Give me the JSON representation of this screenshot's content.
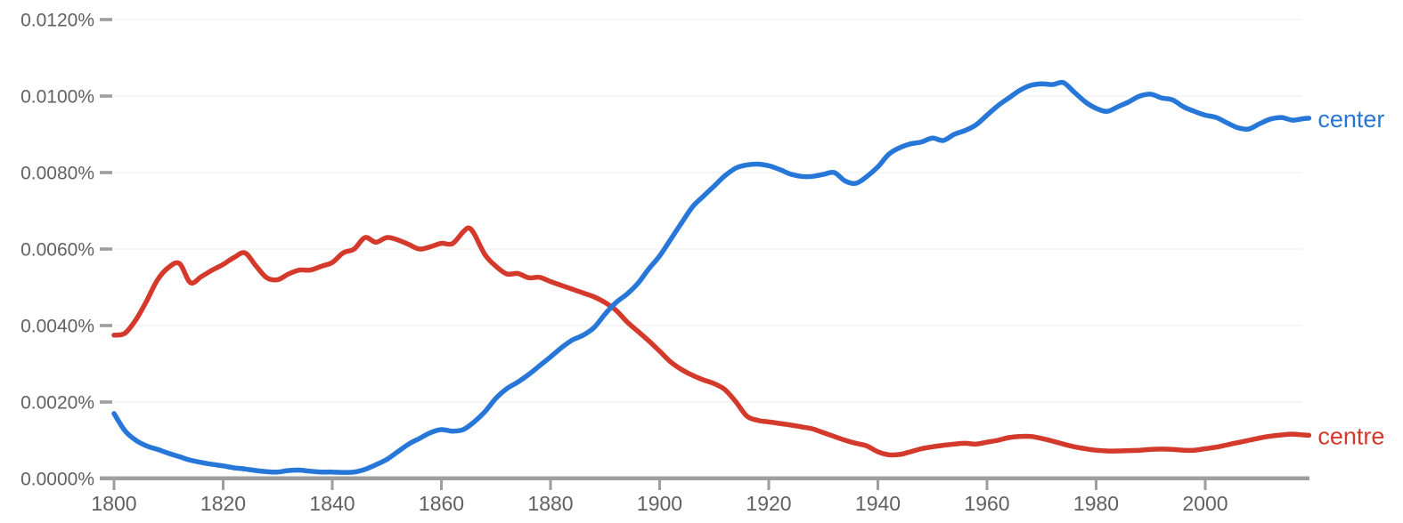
{
  "chart_data": {
    "type": "line",
    "title": "",
    "grid": true,
    "legend_position": "end-of-line",
    "x_axis": {
      "range": [
        1800,
        2019
      ],
      "ticks": [
        1800,
        1820,
        1840,
        1860,
        1880,
        1900,
        1920,
        1940,
        1960,
        1980,
        2000
      ],
      "tick_labels": [
        "1800",
        "1820",
        "1840",
        "1860",
        "1880",
        "1900",
        "1920",
        "1940",
        "1960",
        "1980",
        "2000"
      ]
    },
    "y_axis": {
      "range": [
        0,
        0.012
      ],
      "unit": "%",
      "tick_values": [
        0,
        0.002,
        0.004,
        0.006,
        0.008,
        0.01,
        0.012
      ],
      "tick_labels": [
        "0.0000%",
        "0.0020%",
        "0.0040%",
        "0.0060%",
        "0.0080%",
        "0.0100%",
        "0.0120%"
      ]
    },
    "series": [
      {
        "name": "centre",
        "color": "#d33a2c",
        "points": [
          [
            1800,
            0.00375
          ],
          [
            1802,
            0.0038
          ],
          [
            1804,
            0.00415
          ],
          [
            1806,
            0.00465
          ],
          [
            1808,
            0.0052
          ],
          [
            1810,
            0.00552
          ],
          [
            1812,
            0.00562
          ],
          [
            1814,
            0.00512
          ],
          [
            1816,
            0.00528
          ],
          [
            1818,
            0.00545
          ],
          [
            1820,
            0.0056
          ],
          [
            1822,
            0.00578
          ],
          [
            1824,
            0.0059
          ],
          [
            1826,
            0.00556
          ],
          [
            1828,
            0.00525
          ],
          [
            1830,
            0.0052
          ],
          [
            1832,
            0.00535
          ],
          [
            1834,
            0.00545
          ],
          [
            1836,
            0.00545
          ],
          [
            1838,
            0.00555
          ],
          [
            1840,
            0.00565
          ],
          [
            1842,
            0.0059
          ],
          [
            1844,
            0.006
          ],
          [
            1846,
            0.0063
          ],
          [
            1848,
            0.00618
          ],
          [
            1850,
            0.0063
          ],
          [
            1852,
            0.00624
          ],
          [
            1854,
            0.00612
          ],
          [
            1856,
            0.006
          ],
          [
            1858,
            0.00606
          ],
          [
            1860,
            0.00615
          ],
          [
            1862,
            0.00614
          ],
          [
            1864,
            0.00645
          ],
          [
            1865,
            0.00655
          ],
          [
            1866,
            0.0064
          ],
          [
            1868,
            0.00585
          ],
          [
            1870,
            0.00555
          ],
          [
            1872,
            0.00535
          ],
          [
            1874,
            0.00536
          ],
          [
            1876,
            0.00525
          ],
          [
            1878,
            0.00526
          ],
          [
            1880,
            0.00515
          ],
          [
            1882,
            0.00505
          ],
          [
            1884,
            0.00495
          ],
          [
            1886,
            0.00485
          ],
          [
            1888,
            0.00475
          ],
          [
            1890,
            0.0046
          ],
          [
            1892,
            0.0044
          ],
          [
            1894,
            0.0041
          ],
          [
            1896,
            0.00385
          ],
          [
            1898,
            0.0036
          ],
          [
            1900,
            0.00333
          ],
          [
            1902,
            0.00305
          ],
          [
            1904,
            0.00285
          ],
          [
            1906,
            0.0027
          ],
          [
            1908,
            0.00258
          ],
          [
            1910,
            0.00248
          ],
          [
            1912,
            0.00232
          ],
          [
            1914,
            0.002
          ],
          [
            1916,
            0.00163
          ],
          [
            1918,
            0.00152
          ],
          [
            1920,
            0.00148
          ],
          [
            1922,
            0.00144
          ],
          [
            1924,
            0.0014
          ],
          [
            1926,
            0.00135
          ],
          [
            1928,
            0.0013
          ],
          [
            1930,
            0.0012
          ],
          [
            1932,
            0.0011
          ],
          [
            1934,
            0.001
          ],
          [
            1936,
            0.00092
          ],
          [
            1938,
            0.00085
          ],
          [
            1940,
            0.0007
          ],
          [
            1942,
            0.00062
          ],
          [
            1944,
            0.00063
          ],
          [
            1946,
            0.0007
          ],
          [
            1948,
            0.00078
          ],
          [
            1950,
            0.00083
          ],
          [
            1952,
            0.00087
          ],
          [
            1954,
            0.0009
          ],
          [
            1956,
            0.00092
          ],
          [
            1958,
            0.0009
          ],
          [
            1960,
            0.00095
          ],
          [
            1962,
            0.001
          ],
          [
            1964,
            0.00107
          ],
          [
            1966,
            0.0011
          ],
          [
            1968,
            0.0011
          ],
          [
            1970,
            0.00105
          ],
          [
            1972,
            0.00098
          ],
          [
            1974,
            0.0009
          ],
          [
            1976,
            0.00083
          ],
          [
            1978,
            0.00078
          ],
          [
            1980,
            0.00074
          ],
          [
            1982,
            0.00072
          ],
          [
            1984,
            0.00072
          ],
          [
            1986,
            0.00073
          ],
          [
            1988,
            0.00074
          ],
          [
            1990,
            0.00076
          ],
          [
            1992,
            0.00077
          ],
          [
            1994,
            0.00076
          ],
          [
            1996,
            0.00074
          ],
          [
            1998,
            0.00074
          ],
          [
            2000,
            0.00078
          ],
          [
            2002,
            0.00082
          ],
          [
            2004,
            0.00088
          ],
          [
            2006,
            0.00094
          ],
          [
            2008,
            0.001
          ],
          [
            2010,
            0.00106
          ],
          [
            2012,
            0.00111
          ],
          [
            2014,
            0.00114
          ],
          [
            2016,
            0.00116
          ],
          [
            2018,
            0.00114
          ],
          [
            2019,
            0.00113
          ]
        ]
      },
      {
        "name": "center",
        "color": "#2777d8",
        "points": [
          [
            1800,
            0.0017
          ],
          [
            1802,
            0.00125
          ],
          [
            1804,
            0.001
          ],
          [
            1806,
            0.00085
          ],
          [
            1808,
            0.00076
          ],
          [
            1810,
            0.00066
          ],
          [
            1812,
            0.00057
          ],
          [
            1814,
            0.00048
          ],
          [
            1816,
            0.00042
          ],
          [
            1818,
            0.00037
          ],
          [
            1820,
            0.00033
          ],
          [
            1822,
            0.00028
          ],
          [
            1824,
            0.00025
          ],
          [
            1826,
            0.00021
          ],
          [
            1828,
            0.00018
          ],
          [
            1830,
            0.00017
          ],
          [
            1832,
            0.00021
          ],
          [
            1834,
            0.00022
          ],
          [
            1836,
            0.00019
          ],
          [
            1838,
            0.00017
          ],
          [
            1840,
            0.00017
          ],
          [
            1842,
            0.00016
          ],
          [
            1844,
            0.00017
          ],
          [
            1846,
            0.00024
          ],
          [
            1848,
            0.00036
          ],
          [
            1850,
            0.0005
          ],
          [
            1852,
            0.0007
          ],
          [
            1854,
            0.0009
          ],
          [
            1856,
            0.00105
          ],
          [
            1858,
            0.0012
          ],
          [
            1860,
            0.00128
          ],
          [
            1862,
            0.00124
          ],
          [
            1864,
            0.00128
          ],
          [
            1866,
            0.00148
          ],
          [
            1868,
            0.00175
          ],
          [
            1870,
            0.0021
          ],
          [
            1872,
            0.00235
          ],
          [
            1874,
            0.00252
          ],
          [
            1876,
            0.00272
          ],
          [
            1878,
            0.00295
          ],
          [
            1880,
            0.00318
          ],
          [
            1882,
            0.00342
          ],
          [
            1884,
            0.00362
          ],
          [
            1886,
            0.00375
          ],
          [
            1888,
            0.00395
          ],
          [
            1890,
            0.0043
          ],
          [
            1892,
            0.0046
          ],
          [
            1894,
            0.00482
          ],
          [
            1896,
            0.0051
          ],
          [
            1898,
            0.00548
          ],
          [
            1900,
            0.00582
          ],
          [
            1902,
            0.00625
          ],
          [
            1904,
            0.00668
          ],
          [
            1906,
            0.0071
          ],
          [
            1908,
            0.00738
          ],
          [
            1910,
            0.00765
          ],
          [
            1912,
            0.00792
          ],
          [
            1914,
            0.00812
          ],
          [
            1916,
            0.0082
          ],
          [
            1918,
            0.00822
          ],
          [
            1920,
            0.00818
          ],
          [
            1922,
            0.00808
          ],
          [
            1924,
            0.00796
          ],
          [
            1926,
            0.0079
          ],
          [
            1928,
            0.0079
          ],
          [
            1930,
            0.00795
          ],
          [
            1932,
            0.008
          ],
          [
            1934,
            0.00778
          ],
          [
            1936,
            0.00772
          ],
          [
            1938,
            0.0079
          ],
          [
            1940,
            0.00815
          ],
          [
            1942,
            0.00848
          ],
          [
            1944,
            0.00865
          ],
          [
            1946,
            0.00875
          ],
          [
            1948,
            0.0088
          ],
          [
            1950,
            0.0089
          ],
          [
            1952,
            0.00884
          ],
          [
            1954,
            0.009
          ],
          [
            1956,
            0.0091
          ],
          [
            1958,
            0.00925
          ],
          [
            1960,
            0.0095
          ],
          [
            1962,
            0.00975
          ],
          [
            1964,
            0.00995
          ],
          [
            1966,
            0.01015
          ],
          [
            1968,
            0.01028
          ],
          [
            1970,
            0.01032
          ],
          [
            1972,
            0.0103
          ],
          [
            1974,
            0.01035
          ],
          [
            1976,
            0.0101
          ],
          [
            1978,
            0.00985
          ],
          [
            1980,
            0.00968
          ],
          [
            1982,
            0.0096
          ],
          [
            1984,
            0.00972
          ],
          [
            1986,
            0.00985
          ],
          [
            1988,
            0.01
          ],
          [
            1990,
            0.01005
          ],
          [
            1992,
            0.00995
          ],
          [
            1994,
            0.0099
          ],
          [
            1996,
            0.00972
          ],
          [
            1998,
            0.0096
          ],
          [
            2000,
            0.0095
          ],
          [
            2002,
            0.00944
          ],
          [
            2004,
            0.0093
          ],
          [
            2006,
            0.00917
          ],
          [
            2008,
            0.00914
          ],
          [
            2010,
            0.00928
          ],
          [
            2012,
            0.0094
          ],
          [
            2014,
            0.00944
          ],
          [
            2016,
            0.00937
          ],
          [
            2018,
            0.00941
          ],
          [
            2019,
            0.00942
          ]
        ]
      }
    ],
    "colors": {
      "axis_text": "#616161",
      "axis_line": "#9e9e9e",
      "grid_line": "#f0f0f0",
      "background": "#ffffff"
    }
  }
}
